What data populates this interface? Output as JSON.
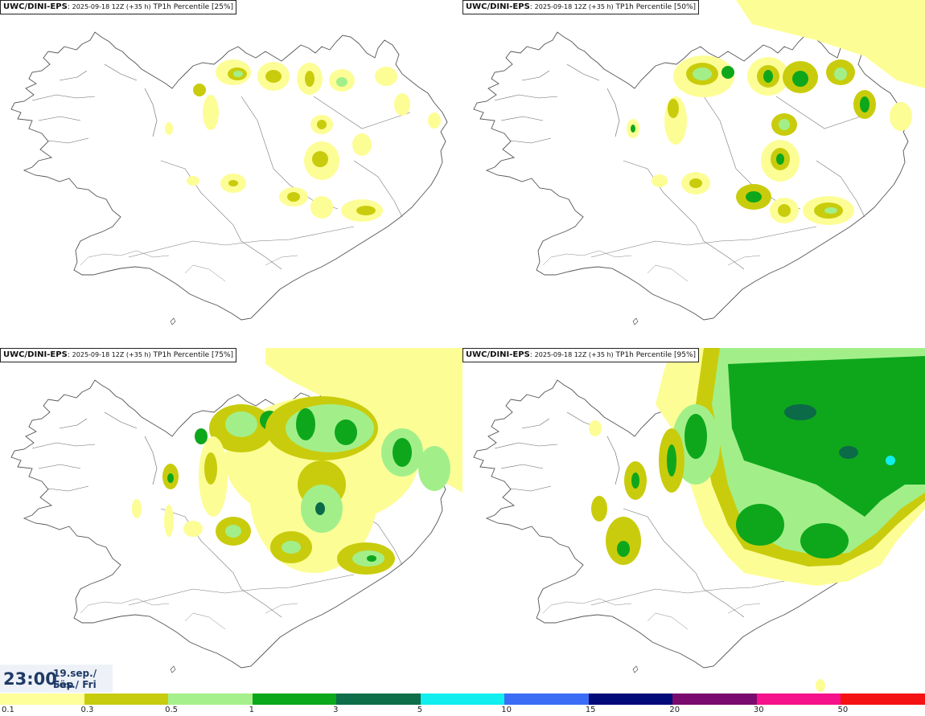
{
  "panels": [
    {
      "model": "UWC/DINI-EPS",
      "run": "2025-09-18 12Z (+35 h)",
      "product": "TP1h Percentile [25%]",
      "level": 1
    },
    {
      "model": "UWC/DINI-EPS",
      "run": "2025-09-18 12Z (+35 h)",
      "product": "TP1h Percentile [50%]",
      "level": 2
    },
    {
      "model": "UWC/DINI-EPS",
      "run": "2025-09-18 12Z (+35 h)",
      "product": "TP1h Percentile [75%]",
      "level": 3
    },
    {
      "model": "UWC/DINI-EPS",
      "run": "2025-09-18 12Z (+35 h)",
      "product": "TP1h Percentile [95%]",
      "level": 4
    }
  ],
  "time": {
    "hour": "23:00",
    "date": "19.sep./ Sep",
    "day": "Fös./ Fri"
  },
  "legend": {
    "ticks": [
      "0.1",
      "0.3",
      "0.5",
      "1",
      "3",
      "5",
      "10",
      "15",
      "20",
      "30",
      "50"
    ],
    "colors": [
      "#ffff9a",
      "#c8cc0e",
      "#a5f08c",
      "#0aa81a",
      "#0d6e4a",
      "#10eeee",
      "#3a6cf5",
      "#000a78",
      "#7a0a6e",
      "#f5128a",
      "#f51212"
    ]
  },
  "colors": {
    "c1": "#fdfd96",
    "c2": "#c9cc0c",
    "c3": "#a2ef8a",
    "c4": "#0ea71c",
    "c5": "#0b6a48"
  }
}
